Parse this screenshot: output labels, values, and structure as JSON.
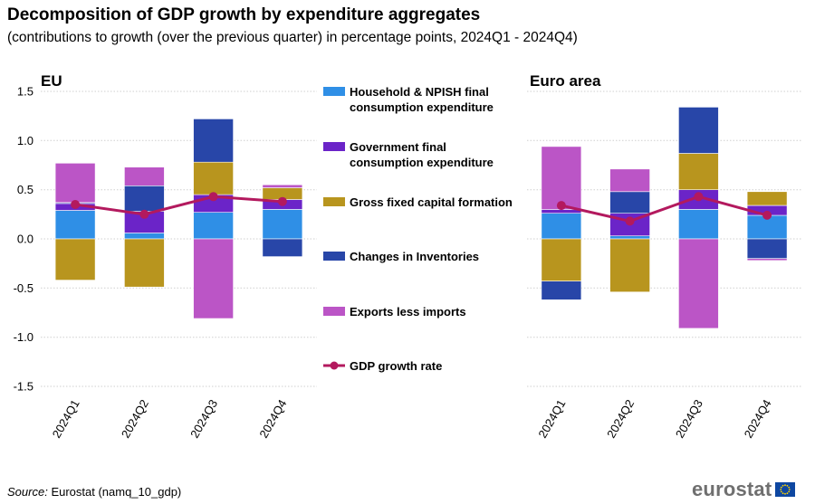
{
  "title": "Decomposition of GDP growth by expenditure aggregates",
  "subtitle": "(contributions to growth (over the previous quarter) in percentage points, 2024Q1 - 2024Q4)",
  "source": {
    "label": "Source:",
    "text": "Eurostat (namq_10_gdp)"
  },
  "logo": {
    "text": "eurostat"
  },
  "chart_data": [
    {
      "type": "bar",
      "stacked": true,
      "title": "EU",
      "categories": [
        "2024Q1",
        "2024Q2",
        "2024Q3",
        "2024Q4"
      ],
      "ylim": [
        -1.5,
        1.5
      ],
      "yticks": [
        "1.5",
        "1.0",
        "0.5",
        "0.0",
        "-0.5",
        "-1.0",
        "-1.5"
      ],
      "series": [
        {
          "name": "Household & NPISH final consumption expenditure",
          "values": [
            0.29,
            0.06,
            0.27,
            0.3
          ],
          "color": "#2f8fe6"
        },
        {
          "name": "Government final consumption expenditure",
          "values": [
            0.07,
            0.22,
            0.18,
            0.1
          ],
          "color": "#6b24c8"
        },
        {
          "name": "Gross fixed capital formation",
          "values": [
            -0.42,
            -0.49,
            0.33,
            0.12
          ],
          "color": "#b8951e"
        },
        {
          "name": "Changes in Inventories",
          "values": [
            0.01,
            0.26,
            0.44,
            -0.18
          ],
          "color": "#2846a8"
        },
        {
          "name": "Exports less imports",
          "values": [
            0.4,
            0.19,
            -0.81,
            0.03
          ],
          "color": "#bb55c6"
        }
      ],
      "line": {
        "name": "GDP growth rate",
        "values": [
          0.35,
          0.25,
          0.43,
          0.38
        ],
        "color": "#b3195e"
      }
    },
    {
      "type": "bar",
      "stacked": true,
      "title": "Euro area",
      "categories": [
        "2024Q1",
        "2024Q2",
        "2024Q3",
        "2024Q4"
      ],
      "ylim": [
        -1.5,
        1.5
      ],
      "series": [
        {
          "name": "Household & NPISH final consumption expenditure",
          "values": [
            0.26,
            0.03,
            0.3,
            0.24
          ],
          "color": "#2f8fe6"
        },
        {
          "name": "Government final consumption expenditure",
          "values": [
            0.04,
            0.23,
            0.2,
            0.1
          ],
          "color": "#6b24c8"
        },
        {
          "name": "Gross fixed capital formation",
          "values": [
            -0.43,
            -0.54,
            0.37,
            0.14
          ],
          "color": "#b8951e"
        },
        {
          "name": "Changes in Inventories",
          "values": [
            -0.19,
            0.22,
            0.47,
            -0.2
          ],
          "color": "#2846a8"
        },
        {
          "name": "Exports less imports",
          "values": [
            0.64,
            0.23,
            -0.91,
            -0.02
          ],
          "color": "#bb55c6"
        }
      ],
      "line": {
        "name": "GDP growth rate",
        "values": [
          0.34,
          0.18,
          0.43,
          0.24
        ],
        "color": "#b3195e"
      }
    }
  ],
  "legend": [
    {
      "label": "Household & NPISH final consumption expenditure",
      "lines": [
        "Household & NPISH final",
        "consumption expenditure"
      ],
      "color": "#2f8fe6",
      "kind": "bar"
    },
    {
      "label": "Government final consumption expenditure",
      "lines": [
        "Government final",
        "consumption expenditure"
      ],
      "color": "#6b24c8",
      "kind": "bar"
    },
    {
      "label": "Gross fixed capital formation",
      "lines": [
        "Gross fixed capital formation"
      ],
      "color": "#b8951e",
      "kind": "bar"
    },
    {
      "label": "Changes in Inventories",
      "lines": [
        "Changes in Inventories"
      ],
      "color": "#2846a8",
      "kind": "bar"
    },
    {
      "label": "Exports less imports",
      "lines": [
        "Exports less imports"
      ],
      "color": "#bb55c6",
      "kind": "bar"
    },
    {
      "label": "GDP growth rate",
      "lines": [
        "GDP growth rate"
      ],
      "color": "#b3195e",
      "kind": "line"
    }
  ]
}
